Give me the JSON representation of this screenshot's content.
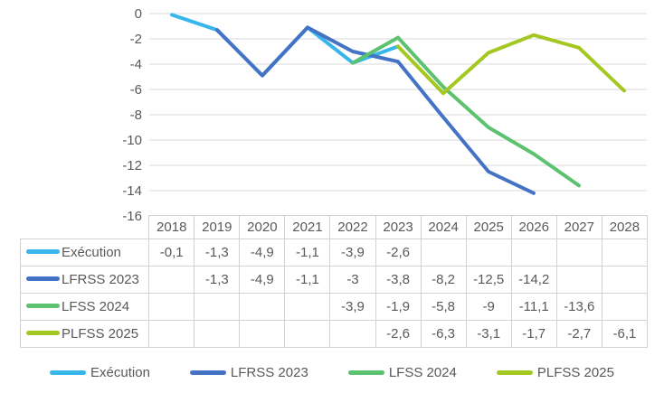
{
  "chart_data": {
    "type": "line",
    "title": "",
    "xlabel": "",
    "ylabel": "",
    "categories": [
      "2018",
      "2019",
      "2020",
      "2021",
      "2022",
      "2023",
      "2024",
      "2025",
      "2026",
      "2027",
      "2028"
    ],
    "series": [
      {
        "name": "Exécution",
        "color": "#38B6EC",
        "values": [
          -0.1,
          -1.3,
          -4.9,
          -1.1,
          -3.9,
          -2.6,
          null,
          null,
          null,
          null,
          null
        ],
        "display": [
          "-0,1",
          "-1,3",
          "-4,9",
          "-1,1",
          "-3,9",
          "-2,6",
          "",
          "",
          "",
          "",
          ""
        ]
      },
      {
        "name": "LFRSS 2023",
        "color": "#4472C4",
        "values": [
          null,
          -1.3,
          -4.9,
          -1.1,
          -3,
          -3.8,
          -8.2,
          -12.5,
          -14.2,
          null,
          null
        ],
        "display": [
          "",
          "-1,3",
          "-4,9",
          "-1,1",
          "-3",
          "-3,8",
          "-8,2",
          "-12,5",
          "-14,2",
          "",
          ""
        ]
      },
      {
        "name": "LFSS 2024",
        "color": "#5CC270",
        "values": [
          null,
          null,
          null,
          null,
          -3.9,
          -1.9,
          -5.8,
          -9,
          -11.1,
          -13.6,
          null
        ],
        "display": [
          "",
          "",
          "",
          "",
          "-3,9",
          "-1,9",
          "-5,8",
          "-9",
          "-11,1",
          "-13,6",
          ""
        ]
      },
      {
        "name": "PLFSS 2025",
        "color": "#A4C822",
        "values": [
          null,
          null,
          null,
          null,
          null,
          -2.6,
          -6.3,
          -3.1,
          -1.7,
          -2.7,
          -6.1
        ],
        "display": [
          "",
          "",
          "",
          "",
          "",
          "-2,6",
          "-6,3",
          "-3,1",
          "-1,7",
          "-2,7",
          "-6,1"
        ]
      }
    ],
    "ylim": [
      -16,
      0
    ],
    "yticks": [
      "0",
      "-2",
      "-4",
      "-6",
      "-8",
      "-10",
      "-12",
      "-14",
      "-16"
    ],
    "grid": "horizontal-only",
    "legend_position": "bottom",
    "data_table_shown": true
  },
  "colors": {
    "gridline": "#d9d9d9",
    "axis_text": "#595959",
    "table_border": "#d2d2d2",
    "table_text": "#595959"
  }
}
